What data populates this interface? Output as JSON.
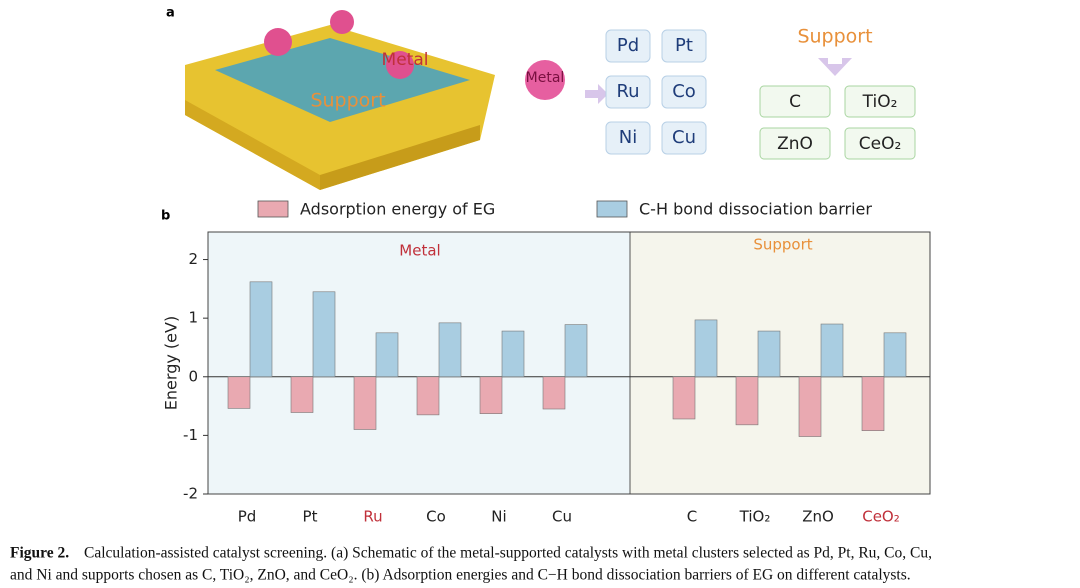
{
  "panel_a": {
    "label": "a",
    "slab_labels": [
      "Metal",
      "Support"
    ],
    "cluster_label": "Metal",
    "metals": [
      "Pd",
      "Pt",
      "Ru",
      "Co",
      "Ni",
      "Cu"
    ],
    "support_title": "Support",
    "supports": [
      "C",
      "TiO₂",
      "ZnO",
      "CeO₂"
    ]
  },
  "chart_data": {
    "type": "bar",
    "panel_label": "b",
    "y_label": "Energy (eV)",
    "categories": [
      "Pd",
      "Pt",
      "Ru",
      "Co",
      "Ni",
      "Cu",
      "C",
      "TiO₂",
      "ZnO",
      "CeO₂"
    ],
    "highlighted_categories": [
      2,
      9
    ],
    "groups": [
      {
        "name": "Metal",
        "size": 6,
        "color": "#c0303a",
        "background": "#eef6f9"
      },
      {
        "name": "Support",
        "size": 4,
        "color": "#e8903a",
        "background": "#f5f5ec"
      }
    ],
    "series": [
      {
        "name": "Adsorption energy of EG",
        "color": "#e9a9b1",
        "values": [
          -0.54,
          -0.61,
          -0.9,
          -0.65,
          -0.63,
          -0.55,
          -0.72,
          -0.82,
          -1.02,
          -0.92
        ]
      },
      {
        "name": "C-H bond dissociation barrier",
        "color": "#a9cde1",
        "values": [
          1.62,
          1.45,
          0.75,
          0.92,
          0.78,
          0.89,
          0.97,
          0.78,
          0.9,
          0.75
        ]
      }
    ],
    "ylim": [
      -2,
      2.47
    ],
    "yticks": [
      -2,
      -1,
      0,
      1,
      2
    ]
  },
  "caption": {
    "label": "Figure 2.",
    "lines": [
      "Calculation-assisted catalyst screening. (a) Schematic of the metal-supported catalysts with metal clusters selected as Pd, Pt, Ru, Co, Cu,",
      "and Ni and supports chosen as C, TiO₂, ZnO, and CeO₂. (b) Adsorption energies and C−H bond dissociation barriers of EG on different catalysts."
    ]
  }
}
